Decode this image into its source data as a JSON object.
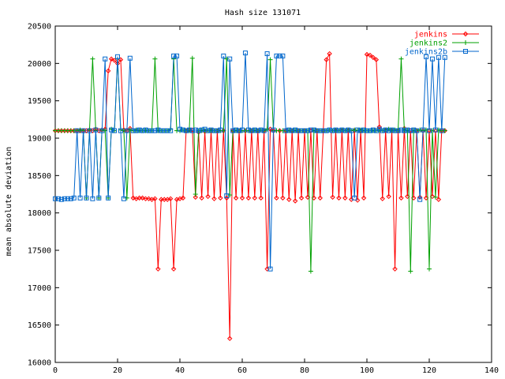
{
  "chart_data": {
    "type": "line",
    "title": "Hash size 131071",
    "xlabel": "",
    "ylabel": "mean absolute deviation",
    "xlim": [
      0,
      140
    ],
    "ylim": [
      16000,
      20500
    ],
    "xticks": [
      0,
      20,
      40,
      60,
      80,
      100,
      120,
      140
    ],
    "yticks": [
      16000,
      16500,
      17000,
      17500,
      18000,
      18500,
      19000,
      19500,
      20000,
      20500
    ],
    "grid": false,
    "legend_position": "top-right",
    "series": [
      {
        "name": "jenkins",
        "color": "#ff0000",
        "marker": "diamond",
        "x": [
          0,
          1,
          2,
          3,
          4,
          5,
          6,
          7,
          8,
          9,
          10,
          11,
          12,
          13,
          14,
          15,
          16,
          17,
          18,
          19,
          20,
          21,
          22,
          23,
          24,
          25,
          26,
          27,
          28,
          29,
          30,
          31,
          32,
          33,
          34,
          35,
          36,
          37,
          38,
          39,
          40,
          41,
          42,
          43,
          44,
          45,
          46,
          47,
          48,
          49,
          50,
          51,
          52,
          53,
          54,
          55,
          56,
          57,
          58,
          59,
          60,
          61,
          62,
          63,
          64,
          65,
          66,
          67,
          68,
          69,
          70,
          71,
          72,
          73,
          74,
          75,
          76,
          77,
          78,
          79,
          80,
          81,
          82,
          83,
          84,
          85,
          86,
          87,
          88,
          89,
          90,
          91,
          92,
          93,
          94,
          95,
          96,
          97,
          98,
          99,
          100,
          101,
          102,
          103,
          104,
          105,
          106,
          107,
          108,
          109,
          110,
          111,
          112,
          113,
          114,
          115,
          116,
          117,
          118,
          119,
          120,
          121,
          122,
          123,
          124,
          125
        ],
        "y": [
          19100,
          19100,
          19100,
          19100,
          19100,
          19100,
          19100,
          19100,
          19100,
          19100,
          19100,
          19110,
          19100,
          19120,
          19100,
          19110,
          19120,
          19900,
          20060,
          20040,
          20000,
          20050,
          19110,
          19100,
          19130,
          18200,
          18190,
          18200,
          18200,
          18190,
          18190,
          18180,
          18190,
          17250,
          18180,
          18180,
          18180,
          18190,
          17250,
          18180,
          18190,
          18200,
          19100,
          19110,
          19110,
          18210,
          19080,
          18200,
          19090,
          18220,
          19100,
          18190,
          19100,
          18200,
          19100,
          18200,
          16320,
          19100,
          18200,
          19100,
          18200,
          19100,
          18200,
          19100,
          18200,
          19100,
          18200,
          19100,
          17250,
          19120,
          19100,
          18200,
          19100,
          18200,
          19100,
          18180,
          19100,
          18160,
          19100,
          18200,
          19100,
          18210,
          19100,
          18200,
          19100,
          18200,
          19100,
          20050,
          20130,
          18210,
          19100,
          18200,
          19100,
          18200,
          19100,
          18180,
          19100,
          18170,
          19100,
          18200,
          20120,
          20110,
          20080,
          20050,
          19150,
          18190,
          19100,
          18220,
          19100,
          17250,
          19100,
          18200,
          19130,
          18220,
          19100,
          18200,
          19100,
          18210,
          19100,
          18200,
          19100,
          18220,
          19100,
          18180,
          19100,
          19100
        ]
      },
      {
        "name": "jenkins2",
        "color": "#00a000",
        "marker": "plus",
        "x": [
          0,
          1,
          2,
          3,
          4,
          5,
          6,
          7,
          8,
          9,
          10,
          11,
          12,
          13,
          14,
          15,
          16,
          17,
          18,
          19,
          20,
          21,
          22,
          23,
          24,
          25,
          26,
          27,
          28,
          29,
          30,
          31,
          32,
          33,
          34,
          35,
          36,
          37,
          38,
          39,
          40,
          41,
          42,
          43,
          44,
          45,
          46,
          47,
          48,
          49,
          50,
          51,
          52,
          53,
          54,
          55,
          56,
          57,
          58,
          59,
          60,
          61,
          62,
          63,
          64,
          65,
          66,
          67,
          68,
          69,
          70,
          71,
          72,
          73,
          74,
          75,
          76,
          77,
          78,
          79,
          80,
          81,
          82,
          83,
          84,
          85,
          86,
          87,
          88,
          89,
          90,
          91,
          92,
          93,
          94,
          95,
          96,
          97,
          98,
          99,
          100,
          101,
          102,
          103,
          104,
          105,
          106,
          107,
          108,
          109,
          110,
          111,
          112,
          113,
          114,
          115,
          116,
          117,
          118,
          119,
          120,
          121,
          122,
          123,
          124,
          125
        ],
        "y": [
          19100,
          19100,
          19100,
          19100,
          19100,
          19100,
          19100,
          19100,
          19110,
          19100,
          18200,
          19110,
          20060,
          19100,
          18200,
          19110,
          19100,
          18200,
          19120,
          19100,
          20060,
          19110,
          19100,
          18200,
          19110,
          19100,
          19110,
          19100,
          19100,
          19100,
          19100,
          19100,
          20060,
          19100,
          19100,
          19100,
          19100,
          19120,
          20060,
          19100,
          19100,
          19110,
          19100,
          19100,
          20070,
          18250,
          19100,
          19100,
          19100,
          19100,
          19100,
          19100,
          19100,
          19100,
          19100,
          20060,
          18240,
          19100,
          19100,
          19100,
          19100,
          19100,
          19100,
          19100,
          19100,
          19100,
          19110,
          19100,
          19120,
          20050,
          19100,
          19100,
          19100,
          19100,
          19100,
          19100,
          19100,
          19100,
          19100,
          19100,
          19100,
          19100,
          17220,
          19100,
          19100,
          19100,
          19100,
          19100,
          19110,
          19100,
          19100,
          19100,
          19110,
          19100,
          19110,
          19100,
          19110,
          19100,
          19110,
          19100,
          19100,
          19100,
          19100,
          19100,
          19100,
          19100,
          19110,
          19120,
          19100,
          19110,
          19100,
          20060,
          19110,
          19100,
          17220,
          19100,
          19100,
          19110,
          19100,
          19110,
          17250,
          19100,
          18210,
          19110,
          19100,
          19100
        ]
      },
      {
        "name": "jenkins2b",
        "color": "#0066cc",
        "marker": "square",
        "x": [
          0,
          1,
          2,
          3,
          4,
          5,
          6,
          7,
          8,
          9,
          10,
          11,
          12,
          13,
          14,
          15,
          16,
          17,
          18,
          19,
          20,
          21,
          22,
          23,
          24,
          25,
          26,
          27,
          28,
          29,
          30,
          31,
          32,
          33,
          34,
          35,
          36,
          37,
          38,
          39,
          40,
          41,
          42,
          43,
          44,
          45,
          46,
          47,
          48,
          49,
          50,
          51,
          52,
          53,
          54,
          55,
          56,
          57,
          58,
          59,
          60,
          61,
          62,
          63,
          64,
          65,
          66,
          67,
          68,
          69,
          70,
          71,
          72,
          73,
          74,
          75,
          76,
          77,
          78,
          79,
          80,
          81,
          82,
          83,
          84,
          85,
          86,
          87,
          88,
          89,
          90,
          91,
          92,
          93,
          94,
          95,
          96,
          97,
          98,
          99,
          100,
          101,
          102,
          103,
          104,
          105,
          106,
          107,
          108,
          109,
          110,
          111,
          112,
          113,
          114,
          115,
          116,
          117,
          118,
          119,
          120,
          121,
          122,
          123,
          124,
          125
        ],
        "y": [
          18190,
          18190,
          18180,
          18190,
          18190,
          18190,
          18200,
          19100,
          18200,
          19100,
          18200,
          19100,
          18190,
          19110,
          18200,
          19100,
          20060,
          18200,
          19110,
          19100,
          20090,
          19100,
          18190,
          19100,
          20070,
          19100,
          19100,
          19110,
          19100,
          19110,
          19100,
          19100,
          19100,
          19110,
          19100,
          19100,
          19100,
          19100,
          20100,
          20100,
          19120,
          19110,
          19100,
          19110,
          19100,
          19110,
          19100,
          19110,
          19120,
          19100,
          19110,
          19100,
          19100,
          19110,
          20100,
          18230,
          20060,
          19100,
          19110,
          19100,
          19110,
          20140,
          19110,
          19100,
          19110,
          19100,
          19110,
          19100,
          20130,
          17250,
          19110,
          20100,
          20100,
          20100,
          19100,
          19110,
          19100,
          19110,
          19100,
          19100,
          19100,
          19100,
          19110,
          19110,
          19100,
          19100,
          19100,
          19100,
          19110,
          19100,
          19110,
          19100,
          19110,
          19100,
          19110,
          19100,
          18200,
          19110,
          19100,
          19110,
          19100,
          19100,
          19110,
          19100,
          19120,
          19100,
          19110,
          19100,
          19110,
          19100,
          19100,
          19110,
          19100,
          19110,
          19100,
          19110,
          19100,
          18180,
          19110,
          20090,
          19100,
          20060,
          19110,
          20080,
          19100,
          20080
        ]
      }
    ]
  }
}
